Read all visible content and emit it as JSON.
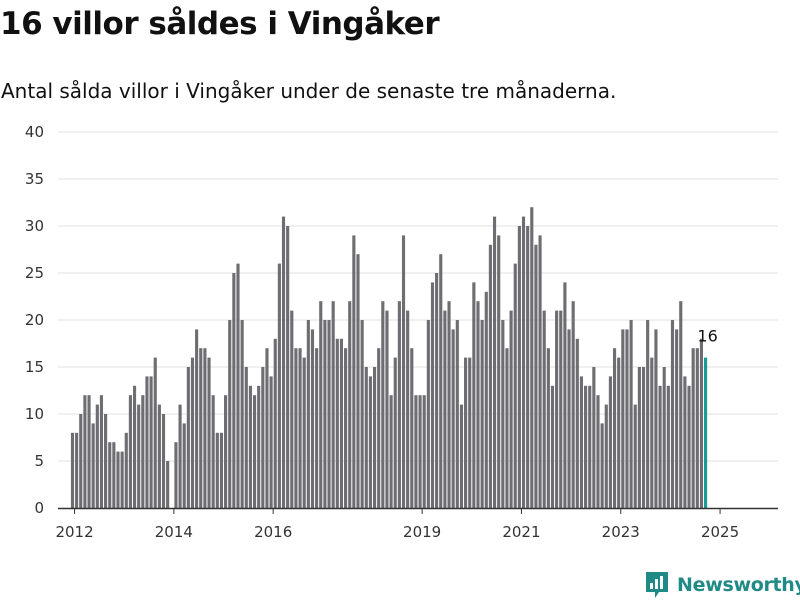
{
  "header": {
    "title": "16 villor såldes i Vingåker",
    "subtitle": "Antal sålda villor i Vingåker under de senaste tre månaderna."
  },
  "brand": {
    "name": "Newsworthy",
    "icon": "newsworthy-logo-icon",
    "color": "#1f8a86"
  },
  "chart_data": {
    "type": "bar",
    "title": "16 villor såldes i Vingåker",
    "subtitle": "Antal sålda villor i Vingåker under de senaste tre månaderna.",
    "xlabel": "",
    "ylabel": "",
    "ylim": [
      0,
      40
    ],
    "yticks": [
      0,
      5,
      10,
      15,
      20,
      25,
      30,
      35,
      40
    ],
    "xlim": [
      "2011-09",
      "2026-03"
    ],
    "xticks": [
      {
        "date": "2012-01",
        "label": "2012"
      },
      {
        "date": "2014-01",
        "label": "2014"
      },
      {
        "date": "2016-01",
        "label": "2016"
      },
      {
        "date": "2019-01",
        "label": "2019"
      },
      {
        "date": "2021-01",
        "label": "2021"
      },
      {
        "date": "2023-01",
        "label": "2023"
      },
      {
        "date": "2025-01",
        "label": "2025"
      }
    ],
    "grid": true,
    "legend": "none",
    "colors": {
      "bar": "#6e6d72",
      "highlight": "#1a9b93",
      "grid": "#e2e2e2",
      "axis": "#333333"
    },
    "highlight_label": "16",
    "series": [
      {
        "start": "2011-12",
        "values": [
          8,
          8,
          10,
          12,
          12,
          9,
          11,
          12,
          10,
          7,
          7,
          6,
          6,
          8,
          12,
          13,
          11,
          12,
          14,
          14,
          16,
          11,
          10,
          5,
          0,
          7,
          11,
          9,
          15,
          16,
          19,
          17,
          17,
          16,
          12,
          8,
          8,
          12,
          20,
          25,
          26,
          20,
          15,
          13,
          12,
          13,
          15,
          17,
          14,
          18,
          26,
          31,
          30,
          21,
          17,
          17,
          16,
          20,
          19,
          17,
          22,
          20,
          20,
          22,
          18,
          18,
          17,
          22,
          29,
          27,
          20,
          15,
          14,
          15,
          17,
          22,
          21,
          12,
          16,
          22,
          29,
          21,
          17,
          12,
          12,
          12,
          20,
          24,
          25,
          27,
          21,
          22,
          19,
          20,
          11,
          16,
          16,
          24,
          22,
          20,
          23,
          28,
          31,
          29,
          20,
          17,
          21,
          26,
          30,
          31,
          30,
          32,
          28,
          29,
          21,
          17,
          13,
          21,
          21,
          24,
          19,
          22,
          18,
          14,
          13,
          13,
          15,
          12,
          9,
          11,
          14,
          17,
          16,
          19,
          19,
          20,
          11,
          15,
          15,
          20,
          16,
          19,
          13,
          15,
          13,
          20,
          19,
          22,
          14,
          13,
          17,
          17,
          18,
          16
        ]
      }
    ]
  }
}
